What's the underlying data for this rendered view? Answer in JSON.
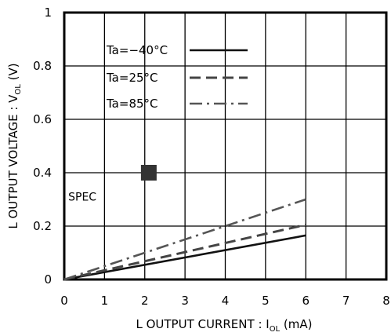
{
  "chart_data": {
    "type": "line",
    "title": "",
    "xlabel": {
      "main": "L OUTPUT CURRENT : I",
      "sub": "OL",
      "unit": " (mA)"
    },
    "ylabel": {
      "main": "L OUTPUT VOLTAGE : V",
      "sub": "OL",
      "unit": " (V)"
    },
    "xlim": [
      0,
      8
    ],
    "ylim": [
      0,
      1
    ],
    "x_ticks": [
      "0",
      "1",
      "2",
      "3",
      "4",
      "5",
      "6",
      "7",
      "8"
    ],
    "y_ticks": [
      "0",
      "0.2",
      "0.4",
      "0.6",
      "0.8",
      "1"
    ],
    "x_tick_values": [
      0,
      1,
      2,
      3,
      4,
      5,
      6,
      7,
      8
    ],
    "y_tick_values": [
      0,
      0.2,
      0.4,
      0.6,
      0.8,
      1
    ],
    "grid": true,
    "legend_position": "top-left",
    "series": [
      {
        "name": "Ta=−40°C",
        "style": "solid",
        "x": [
          0,
          6
        ],
        "y": [
          0,
          0.165
        ]
      },
      {
        "name": "Ta=25°C",
        "style": "dashed",
        "x": [
          0,
          6
        ],
        "y": [
          0,
          0.205
        ]
      },
      {
        "name": "Ta=85°C",
        "style": "dashdot",
        "x": [
          0,
          6
        ],
        "y": [
          0,
          0.3
        ]
      }
    ],
    "annotations": [
      {
        "text": "SPEC",
        "x": 0.1,
        "y": 0.295
      }
    ],
    "markers": [
      {
        "name": "spec-point",
        "x": 2.1,
        "y": 0.4,
        "color": "#333333"
      }
    ],
    "colors": {
      "solid": "#111111",
      "dashed": "#444444",
      "dashdot": "#555555",
      "grid": "#000000"
    }
  }
}
